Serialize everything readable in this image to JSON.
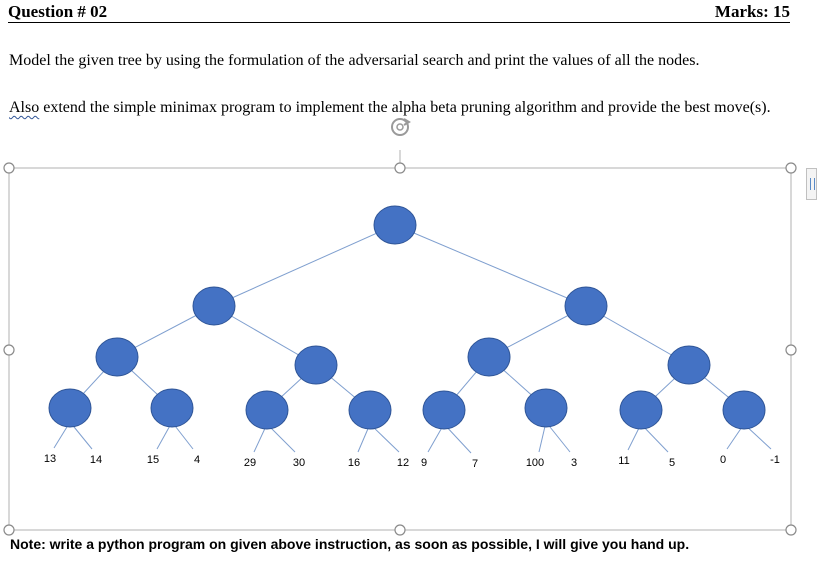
{
  "header": {
    "question": "Question # 02",
    "marks": "Marks: 15"
  },
  "paragraph1": "Model the given tree by using the formulation of the adversarial search and print the values of all the nodes.",
  "paragraph2": {
    "word": "Also",
    "rest": " extend the simple minimax program to implement the alpha beta pruning algorithm and provide the best move(s)."
  },
  "leaf_values": [
    "13",
    "14",
    "15",
    "4",
    "29",
    "30",
    "16",
    "12",
    "9",
    "7",
    "100",
    "3",
    "11",
    "5",
    "0",
    "-1"
  ],
  "note": "Note: write a python program on given above instruction, as soon as possible, I will give you hand up.",
  "colors": {
    "node_fill": "#4472c4",
    "node_stroke": "#2f5597",
    "edge": "#7f9fcf",
    "frame": "#b0b0b0"
  },
  "icons": [
    "rotate-handle-icon",
    "resize-handle-icon",
    "layout-options-icon"
  ]
}
